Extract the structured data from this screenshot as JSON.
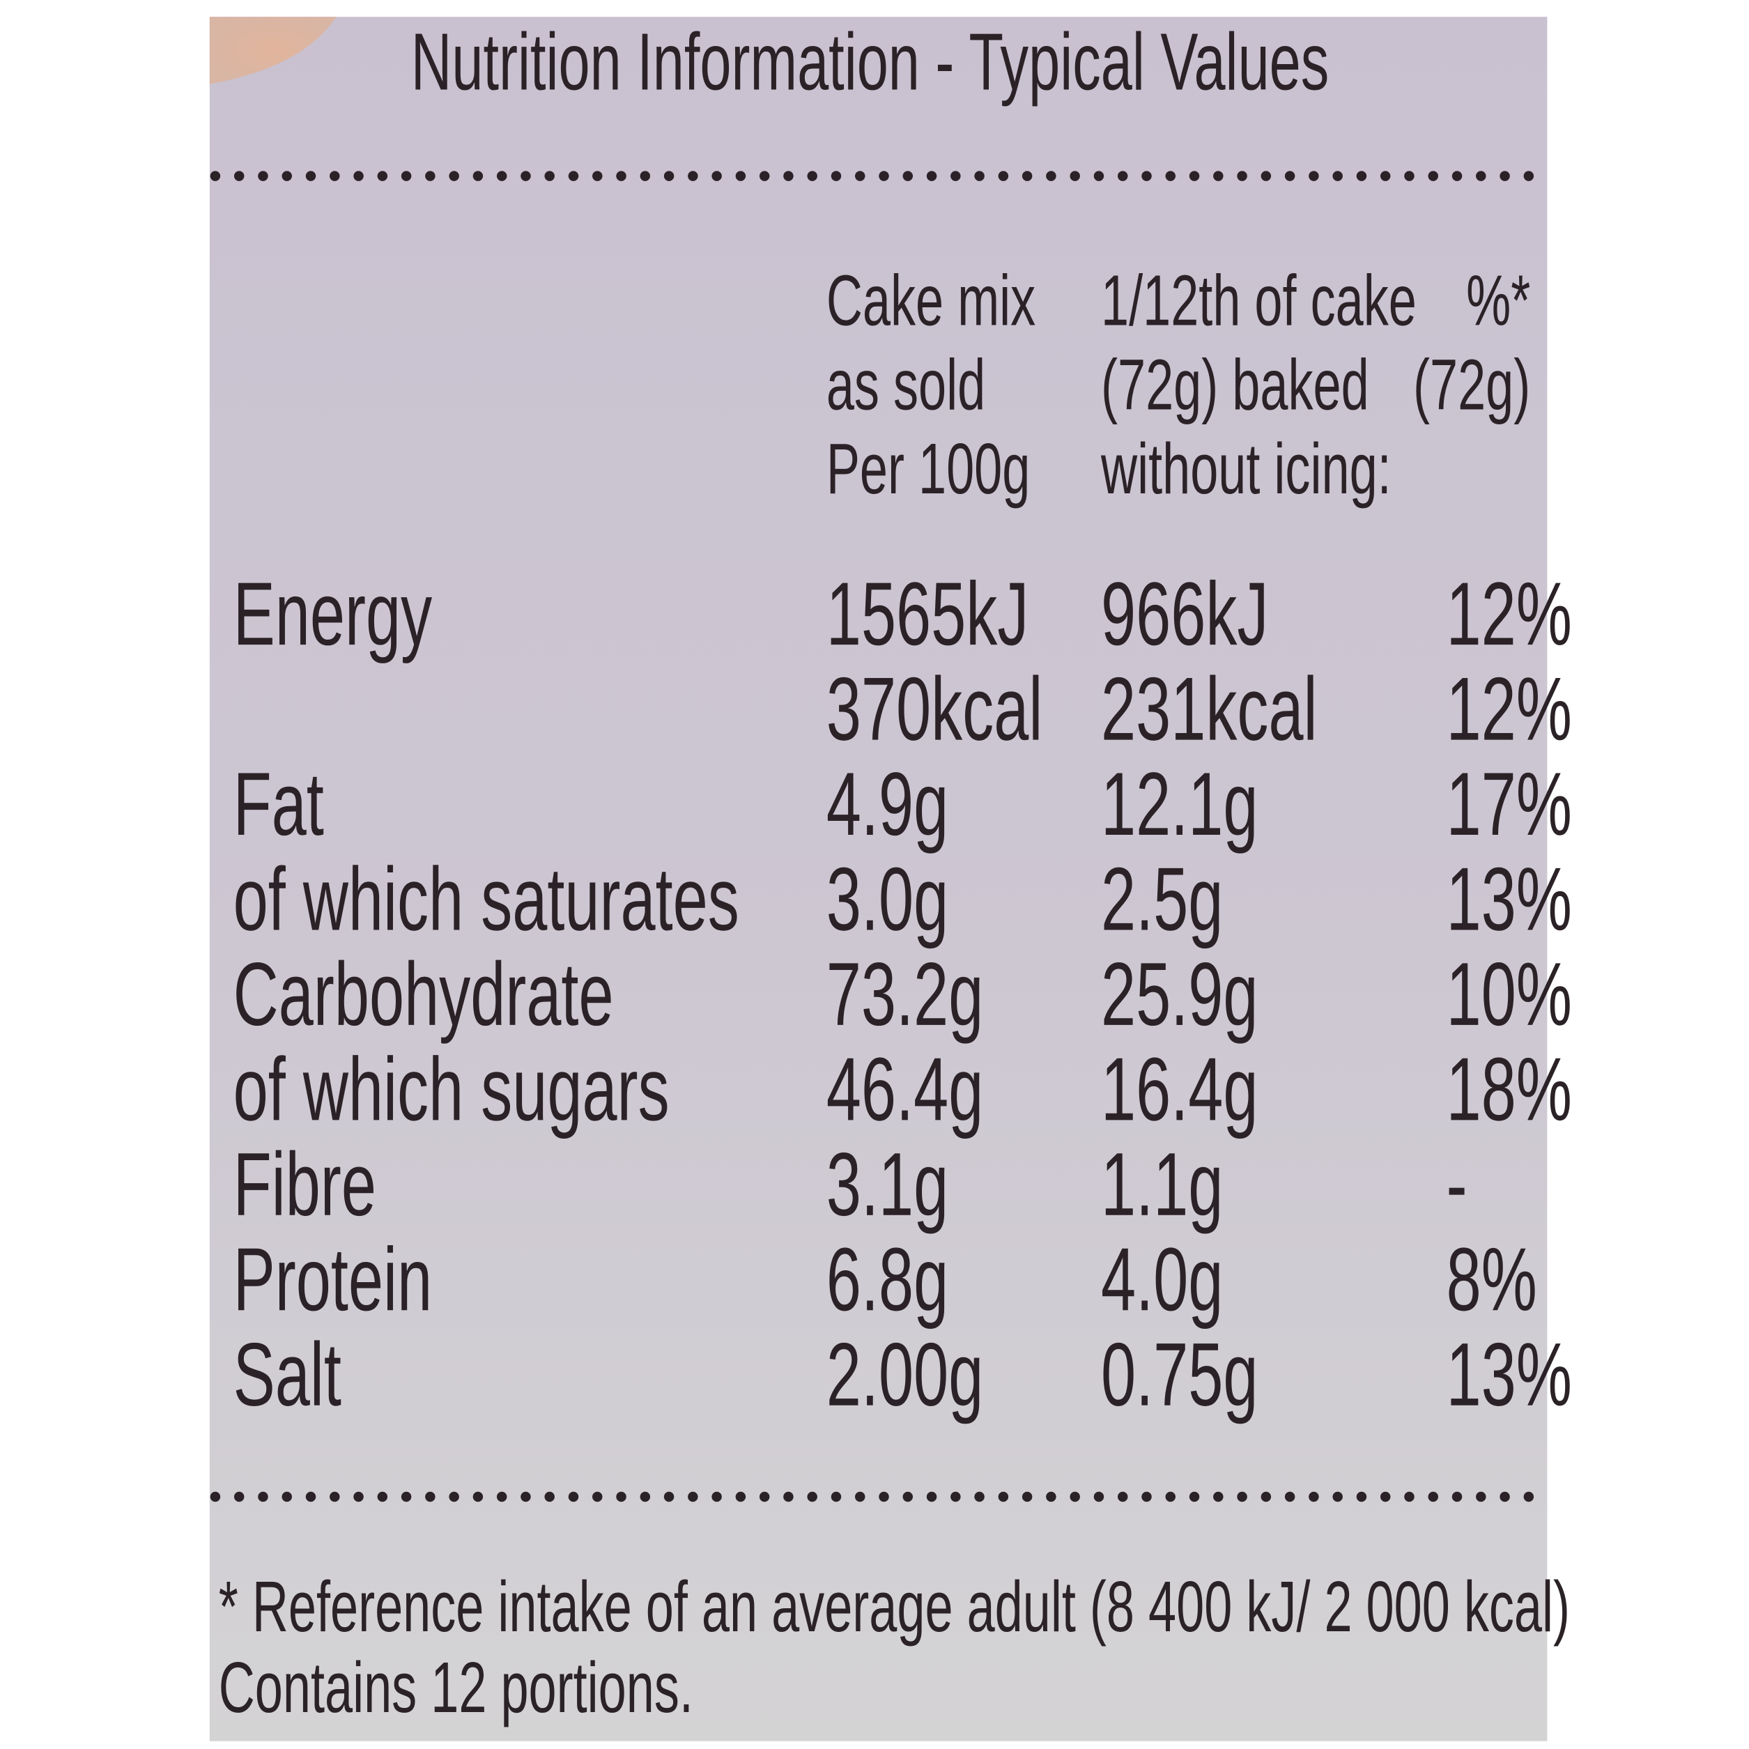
{
  "title": "Nutrition Information - Typical Values",
  "header": {
    "columns": [
      [
        "Cake mix",
        "as sold",
        "Per 100g"
      ],
      [
        "1/12th of cake",
        "(72g) baked",
        "without icing:"
      ],
      [
        "%*",
        "(72g)"
      ]
    ]
  },
  "table": {
    "rows": [
      {
        "label": "Energy",
        "values": [
          "1565kJ",
          "966kJ",
          "12%"
        ]
      },
      {
        "values": [
          "370kcal",
          "231kcal",
          "12%"
        ]
      },
      {
        "label": "Fat",
        "values": [
          "4.9g",
          "12.1g",
          "17%"
        ]
      },
      {
        "label": "of which saturates",
        "values": [
          "3.0g",
          "2.5g",
          "13%"
        ]
      },
      {
        "label": "Carbohydrate",
        "values": [
          "73.2g",
          "25.9g",
          "10%"
        ]
      },
      {
        "label": "of which sugars",
        "values": [
          "46.4g",
          "16.4g",
          "18%"
        ]
      },
      {
        "label": "Fibre",
        "values": [
          "3.1g",
          "1.1g",
          "-"
        ]
      },
      {
        "label": "Protein",
        "values": [
          "6.8g",
          "4.0g",
          "8%"
        ]
      },
      {
        "label": "Salt",
        "values": [
          "2.00g",
          "0.75g",
          "13%"
        ]
      }
    ]
  },
  "footnote": [
    "* Reference intake of an average adult (8 400 kJ/ 2 000 kcal)",
    "Contains 12 portions."
  ]
}
